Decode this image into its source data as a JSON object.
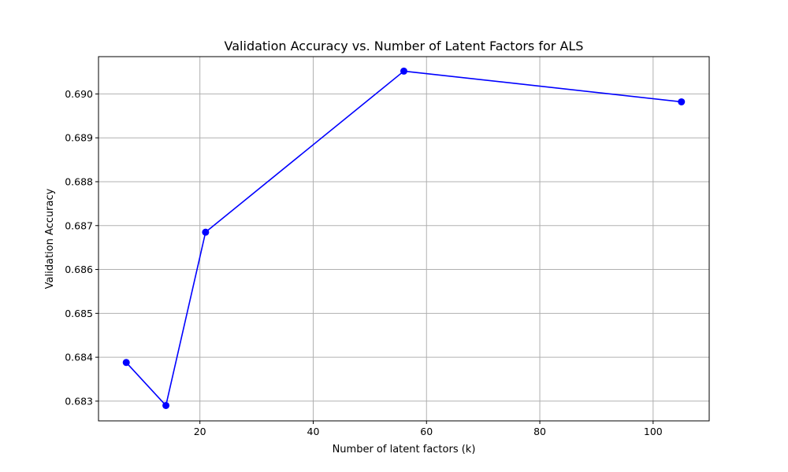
{
  "chart_data": {
    "type": "line",
    "title": "Validation Accuracy vs. Number of Latent Factors for ALS",
    "xlabel": "Number of latent factors (k)",
    "ylabel": "Validation Accuracy",
    "xlim": [
      2.1,
      109.9
    ],
    "ylim": [
      0.68255,
      0.69085
    ],
    "grid": true,
    "x_ticks": [
      20,
      40,
      60,
      80,
      100
    ],
    "x_tick_labels": [
      "20",
      "40",
      "60",
      "80",
      "100"
    ],
    "y_ticks": [
      0.683,
      0.684,
      0.685,
      0.686,
      0.687,
      0.688,
      0.689,
      0.69
    ],
    "y_tick_labels": [
      "0.683",
      "0.684",
      "0.685",
      "0.686",
      "0.687",
      "0.688",
      "0.689",
      "0.690"
    ],
    "series": [
      {
        "color": "#0000ff",
        "marker": "circle",
        "x": [
          7,
          14,
          21,
          56,
          105
        ],
        "y": [
          0.68388,
          0.6829,
          0.68685,
          0.69052,
          0.68982
        ]
      }
    ]
  }
}
